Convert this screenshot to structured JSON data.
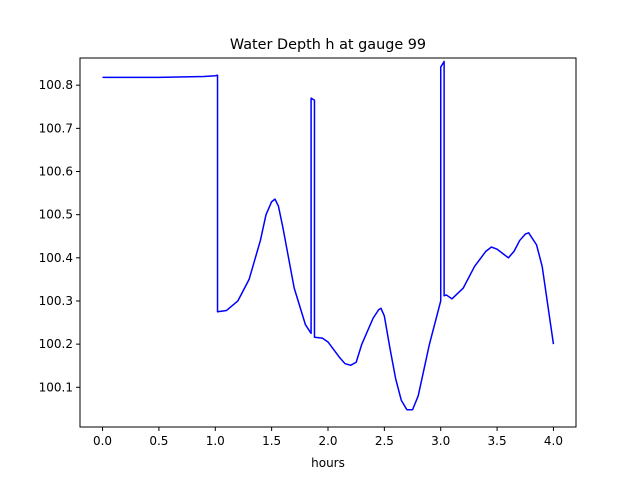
{
  "chart_data": {
    "type": "line",
    "title": "Water Depth h at gauge 99",
    "xlabel": "hours",
    "ylabel": "",
    "xlim": [
      -0.2,
      4.2
    ],
    "ylim": [
      100.008,
      100.863
    ],
    "x_ticks": [
      0.0,
      0.5,
      1.0,
      1.5,
      2.0,
      2.5,
      3.0,
      3.5,
      4.0
    ],
    "x_tick_labels": [
      "0.0",
      "0.5",
      "1.0",
      "1.5",
      "2.0",
      "2.5",
      "3.0",
      "3.5",
      "4.0"
    ],
    "y_ticks": [
      100.1,
      100.2,
      100.3,
      100.4,
      100.5,
      100.6,
      100.7,
      100.8
    ],
    "y_tick_labels": [
      "100.1",
      "100.2",
      "100.3",
      "100.4",
      "100.5",
      "100.6",
      "100.7",
      "100.8"
    ],
    "grid": false,
    "series": [
      {
        "color": "#0000ff",
        "x": [
          0.0,
          0.5,
          0.9,
          1.0,
          1.02,
          1.02,
          1.1,
          1.2,
          1.3,
          1.4,
          1.45,
          1.5,
          1.53,
          1.56,
          1.6,
          1.7,
          1.8,
          1.85,
          1.85,
          1.88,
          1.88,
          1.95,
          2.0,
          2.1,
          2.15,
          2.2,
          2.25,
          2.3,
          2.4,
          2.45,
          2.47,
          2.5,
          2.55,
          2.6,
          2.65,
          2.7,
          2.75,
          2.8,
          2.85,
          2.9,
          3.0,
          3.0,
          3.03,
          3.03,
          3.05,
          3.1,
          3.2,
          3.3,
          3.4,
          3.45,
          3.5,
          3.55,
          3.6,
          3.65,
          3.7,
          3.75,
          3.78,
          3.85,
          3.9,
          4.0
        ],
        "y": [
          100.818,
          100.818,
          100.82,
          100.822,
          100.823,
          100.275,
          100.278,
          100.3,
          100.35,
          100.44,
          100.5,
          100.53,
          100.536,
          100.52,
          100.47,
          100.33,
          100.245,
          100.225,
          100.77,
          100.765,
          100.216,
          100.214,
          100.205,
          100.17,
          100.155,
          100.151,
          100.158,
          100.2,
          100.26,
          100.28,
          100.283,
          100.265,
          100.19,
          100.12,
          100.07,
          100.048,
          100.048,
          100.08,
          100.14,
          100.2,
          100.3,
          100.842,
          100.855,
          100.312,
          100.314,
          100.305,
          100.33,
          100.38,
          100.415,
          100.425,
          100.42,
          100.41,
          100.4,
          100.415,
          100.44,
          100.455,
          100.458,
          100.43,
          100.38,
          100.2
        ]
      }
    ]
  }
}
